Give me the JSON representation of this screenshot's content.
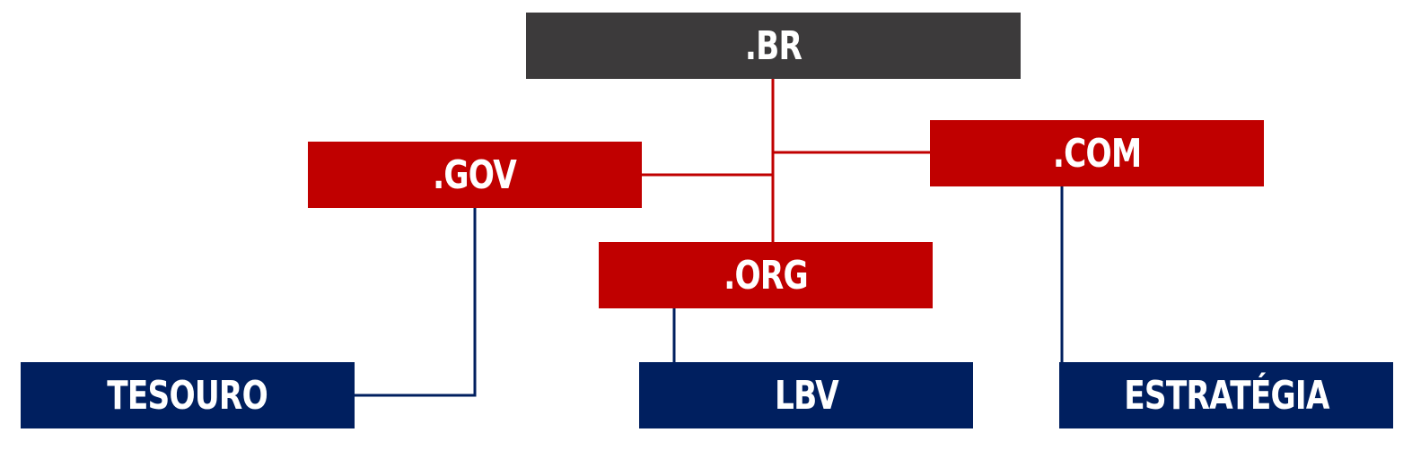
{
  "diagram": {
    "root": {
      "label": ".BR",
      "color": "#3c3a3b"
    },
    "tlds": [
      {
        "id": "gov",
        "label": ".GOV",
        "color": "#c00000"
      },
      {
        "id": "com",
        "label": ".COM",
        "color": "#c00000"
      },
      {
        "id": "org",
        "label": ".ORG",
        "color": "#c00000"
      }
    ],
    "leaves": [
      {
        "id": "tesouro",
        "label": "TESOURO",
        "parent": "gov",
        "color": "#001f5f"
      },
      {
        "id": "lbv",
        "label": "LBV",
        "parent": "org",
        "color": "#001f5f"
      },
      {
        "id": "estrategia",
        "label": "ESTRATÉGIA",
        "parent": "com",
        "color": "#001f5f"
      }
    ],
    "connector_colors": {
      "root_to_tld": "#c00000",
      "tld_to_leaf": "#001f5f"
    }
  }
}
